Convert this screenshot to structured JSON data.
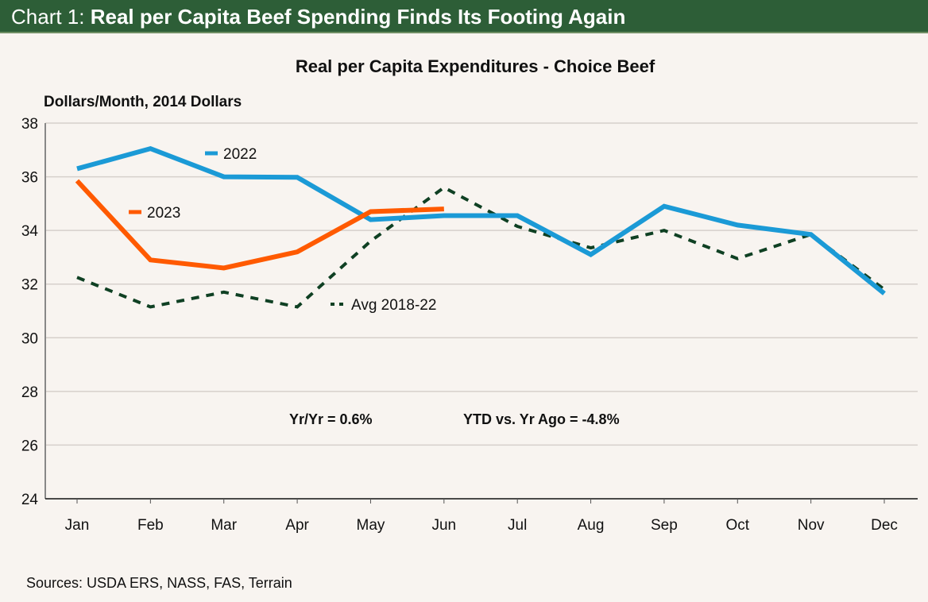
{
  "header": {
    "prefix": "Chart 1: ",
    "title": "Real per Capita Beef Spending Finds Its Footing Again",
    "background": "#2d5e37"
  },
  "source": "Sources: USDA ERS, NASS, FAS, Terrain",
  "chart_data": {
    "type": "line",
    "title": "Real per Capita Expenditures - Choice Beef",
    "ylabel": "Dollars/Month, 2014 Dollars",
    "xlabel": "",
    "categories": [
      "Jan",
      "Feb",
      "Mar",
      "Apr",
      "May",
      "Jun",
      "Jul",
      "Aug",
      "Sep",
      "Oct",
      "Nov",
      "Dec"
    ],
    "ylim": [
      24,
      38
    ],
    "yticks": [
      24,
      26,
      28,
      30,
      32,
      34,
      36,
      38
    ],
    "grid": true,
    "series": [
      {
        "name": "2022",
        "color": "#1b9ad6",
        "style": "solid",
        "values": [
          36.3,
          37.05,
          36.0,
          35.98,
          34.4,
          34.55,
          34.55,
          33.1,
          34.9,
          34.2,
          33.85,
          31.65
        ]
      },
      {
        "name": "2023",
        "color": "#ff5a00",
        "style": "solid",
        "values": [
          35.85,
          32.9,
          32.6,
          33.2,
          34.7,
          34.8,
          null,
          null,
          null,
          null,
          null,
          null
        ]
      },
      {
        "name": "Avg 2018-22",
        "color": "#0f4023",
        "style": "dashed",
        "values": [
          32.25,
          31.15,
          31.7,
          31.15,
          33.6,
          35.6,
          34.15,
          33.35,
          34.0,
          32.95,
          33.85,
          31.8
        ]
      }
    ],
    "legend": [
      {
        "label": "2022",
        "placement": "near Mar, above 36"
      },
      {
        "label": "2023",
        "placement": "near Feb, around 34.7"
      },
      {
        "label": "Avg 2018-22",
        "placement": "near May, around 31.3"
      }
    ],
    "annotations": [
      "Yr/Yr = 0.6%",
      "YTD vs. Yr Ago = -4.8%"
    ]
  }
}
